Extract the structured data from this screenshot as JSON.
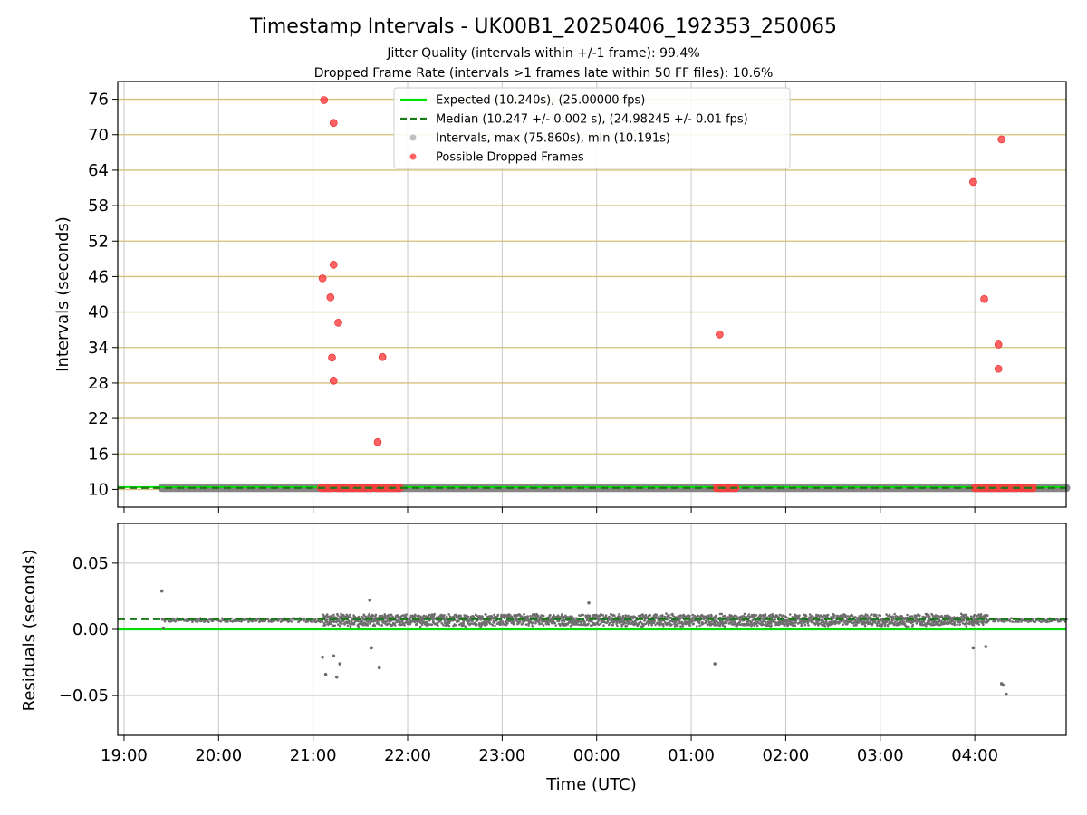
{
  "figure": {
    "title": "Timestamp Intervals - UK00B1_20250406_192353_250065",
    "subtitle_1": "Jitter Quality (intervals within +/-1 frame): 99.4%",
    "subtitle_2": "Dropped Frame Rate (intervals >1 frames late within 50 FF files): 10.6%"
  },
  "colors": {
    "expected": "#00e000",
    "median": "#1a7a1a",
    "intervals": "#808080",
    "dropped": "#ff3b3b",
    "hgrid": "#d4c07a",
    "vgrid": "#c8c8c8"
  },
  "chart_data": [
    {
      "type": "scatter",
      "name": "intervals",
      "title": "Timestamp Intervals - UK00B1_20250406_192353_250065",
      "xlabel": "",
      "ylabel": "Intervals (seconds)",
      "ylim": [
        7,
        79
      ],
      "yticks": [
        10,
        16,
        22,
        28,
        34,
        40,
        46,
        52,
        58,
        64,
        70,
        76
      ],
      "xlim": [
        "18:56",
        "04:58"
      ],
      "grid": "on",
      "legend_placement": "top-center",
      "legend": [
        {
          "label": "Expected (10.240s), (25.00000 fps)",
          "style": "line-solid"
        },
        {
          "label": "Median (10.247 +/- 0.002 s), (24.98245 +/- 0.01 fps)",
          "style": "line-dashed"
        },
        {
          "label": "Intervals, max (75.860s), min (10.191s)",
          "style": "point-grey"
        },
        {
          "label": "Possible Dropped Frames",
          "style": "point-red"
        }
      ],
      "expected_value": 10.24,
      "median_value": 10.247,
      "intervals_time_range": [
        "19:24",
        "04:58"
      ],
      "dropped_frame_runs_at_baseline": [
        {
          "start": "21:05",
          "end": "21:12"
        },
        {
          "start": "21:15",
          "end": "21:26"
        },
        {
          "start": "21:28",
          "end": "21:37"
        },
        {
          "start": "21:40",
          "end": "21:55"
        },
        {
          "start": "01:16",
          "end": "01:28"
        },
        {
          "start": "04:00",
          "end": "04:18"
        },
        {
          "start": "04:20",
          "end": "04:27"
        },
        {
          "start": "04:29",
          "end": "04:37"
        }
      ],
      "dropped_frames": [
        {
          "x": "21:07",
          "y": 75.86
        },
        {
          "x": "21:13",
          "y": 72.0
        },
        {
          "x": "21:06",
          "y": 45.7
        },
        {
          "x": "21:11",
          "y": 42.5
        },
        {
          "x": "21:13",
          "y": 48.0
        },
        {
          "x": "21:16",
          "y": 38.2
        },
        {
          "x": "21:12",
          "y": 32.3
        },
        {
          "x": "21:13",
          "y": 28.4
        },
        {
          "x": "21:44",
          "y": 32.4
        },
        {
          "x": "21:41",
          "y": 18.0
        },
        {
          "x": "01:18",
          "y": 36.2
        },
        {
          "x": "03:59",
          "y": 62.0
        },
        {
          "x": "04:17",
          "y": 69.2
        },
        {
          "x": "04:06",
          "y": 42.2
        },
        {
          "x": "04:15",
          "y": 34.5
        },
        {
          "x": "04:15",
          "y": 30.4
        }
      ]
    },
    {
      "type": "scatter",
      "name": "residuals",
      "xlabel": "Time (UTC)",
      "ylabel": "Residuals (seconds)",
      "ylim": [
        -0.08,
        0.08
      ],
      "yticks": [
        0.05,
        0.0,
        -0.05
      ],
      "ytick_labels": [
        "0.05",
        "0.00",
        "−0.05"
      ],
      "xlim": [
        "18:56",
        "04:58"
      ],
      "xticks": [
        "19:00",
        "20:00",
        "21:00",
        "22:00",
        "23:00",
        "00:00",
        "01:00",
        "02:00",
        "03:00",
        "04:00"
      ],
      "grid": "on",
      "zero_line": 0.0,
      "median_residual": 0.007,
      "band": {
        "start": "19:24",
        "end": "04:58",
        "center": 0.007,
        "spread": 0.004
      },
      "outliers": [
        {
          "x": "19:24",
          "y": 0.029
        },
        {
          "x": "21:36",
          "y": 0.022
        },
        {
          "x": "23:55",
          "y": 0.02
        },
        {
          "x": "19:25",
          "y": 0.001
        },
        {
          "x": "21:06",
          "y": -0.021
        },
        {
          "x": "21:13",
          "y": -0.02
        },
        {
          "x": "21:08",
          "y": -0.034
        },
        {
          "x": "21:15",
          "y": -0.036
        },
        {
          "x": "21:17",
          "y": -0.026
        },
        {
          "x": "21:37",
          "y": -0.014
        },
        {
          "x": "21:42",
          "y": -0.029
        },
        {
          "x": "01:15",
          "y": -0.026
        },
        {
          "x": "03:59",
          "y": -0.014
        },
        {
          "x": "04:07",
          "y": -0.013
        },
        {
          "x": "04:17",
          "y": -0.041
        },
        {
          "x": "04:18",
          "y": -0.042
        },
        {
          "x": "04:20",
          "y": -0.049
        }
      ]
    }
  ]
}
